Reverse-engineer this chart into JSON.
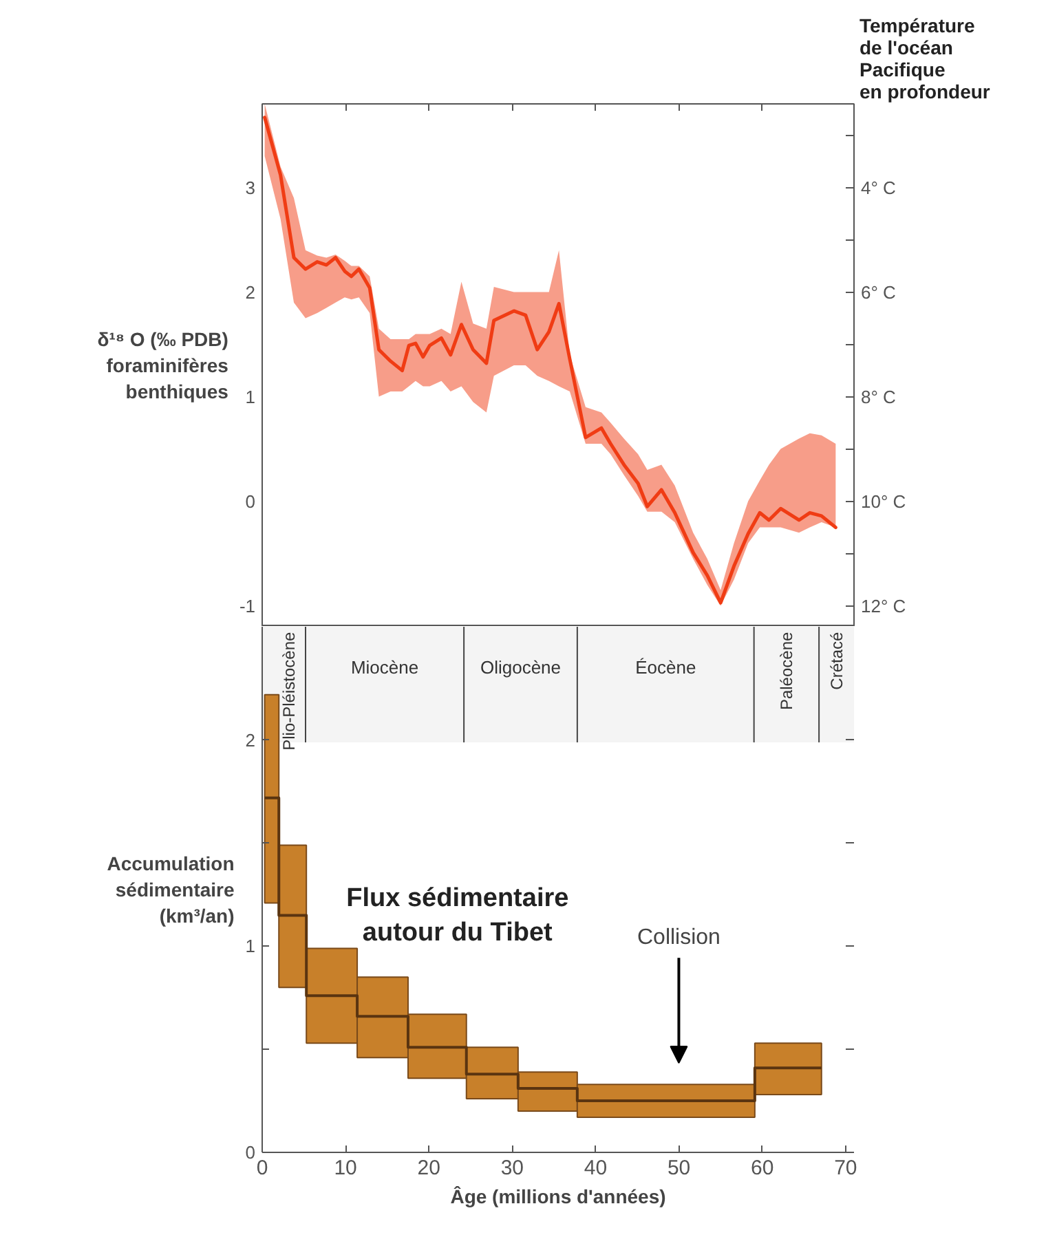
{
  "chart_data": [
    {
      "type": "line",
      "ylabel": "δ¹⁸ O (‰ PDB)\nforaminifères\nbenthiques",
      "y2label": "Température\nde l'océan\nPacifique\nen profondeur",
      "xlim": [
        0,
        71
      ],
      "xticks": [
        10,
        20,
        30,
        40,
        50,
        60
      ],
      "tick_labels": "y",
      "ylim": [
        -1.2,
        3.8
      ],
      "yticks": [
        -1,
        {
          "value": -0.5,
          "label": null
        },
        0,
        {
          "value": 0.5,
          "label": null
        },
        1,
        {
          "value": 1.5,
          "label": null
        },
        2,
        {
          "value": 2.5,
          "label": null
        },
        3,
        {
          "value": 3.5,
          "label": null
        }
      ],
      "y2lim": [
        12.4,
        2.4
      ],
      "y2ticks": [
        {
          "value": 3,
          "label": null
        },
        {
          "value": 4,
          "label": "4° C"
        },
        {
          "value": 5,
          "label": null
        },
        {
          "value": 6,
          "label": "6° C"
        },
        {
          "value": 7,
          "label": null
        },
        {
          "value": 8,
          "label": "8° C"
        },
        {
          "value": 9,
          "label": null
        },
        {
          "value": 10,
          "label": "10° C"
        },
        {
          "value": 11,
          "label": null
        },
        {
          "value": 12,
          "label": "12° C"
        }
      ],
      "series": [
        {
          "color": "#f03c14",
          "x": [
            0.3,
            2.2,
            3.8,
            5.2,
            6.6,
            7.7,
            8.8,
            9.9,
            10.7,
            11.6,
            12.9,
            14.0,
            15.4,
            16.8,
            17.6,
            18.4,
            19.3,
            20.1,
            21.5,
            22.6,
            23.9,
            25.3,
            26.9,
            27.8,
            30.2,
            31.6,
            33.0,
            34.4,
            35.6,
            36.9,
            38.8,
            40.7,
            41.8,
            43.4,
            45.1,
            46.2,
            47.9,
            49.5,
            51.7,
            53.4,
            55.0,
            56.6,
            58.3,
            59.7,
            60.8,
            62.2,
            64.4,
            65.7,
            67.1,
            68.8
          ],
          "values": [
            3.67,
            3.12,
            2.33,
            2.22,
            2.29,
            2.26,
            2.33,
            2.2,
            2.15,
            2.22,
            2.04,
            1.45,
            1.34,
            1.25,
            1.49,
            1.51,
            1.38,
            1.49,
            1.56,
            1.4,
            1.69,
            1.45,
            1.32,
            1.73,
            1.82,
            1.78,
            1.45,
            1.62,
            1.89,
            1.36,
            0.61,
            0.7,
            0.55,
            0.35,
            0.17,
            -0.05,
            0.11,
            -0.11,
            -0.49,
            -0.71,
            -0.97,
            -0.62,
            -0.31,
            -0.11,
            -0.18,
            -0.07,
            -0.18,
            -0.11,
            -0.14,
            -0.25
          ],
          "upper": [
            3.8,
            3.2,
            2.9,
            2.4,
            2.35,
            2.33,
            2.36,
            2.3,
            2.25,
            2.25,
            2.15,
            1.65,
            1.55,
            1.55,
            1.55,
            1.6,
            1.6,
            1.6,
            1.65,
            1.6,
            2.1,
            1.7,
            1.65,
            2.05,
            2.0,
            2.0,
            2.0,
            2.0,
            2.4,
            1.4,
            0.9,
            0.85,
            0.75,
            0.6,
            0.45,
            0.3,
            0.35,
            0.15,
            -0.3,
            -0.55,
            -0.85,
            -0.4,
            0.0,
            0.2,
            0.35,
            0.5,
            0.6,
            0.65,
            0.63,
            0.55
          ],
          "lower": [
            3.3,
            2.7,
            1.9,
            1.75,
            1.8,
            1.85,
            1.9,
            1.95,
            1.93,
            1.95,
            1.8,
            1.0,
            1.05,
            1.05,
            1.1,
            1.15,
            1.1,
            1.1,
            1.15,
            1.05,
            1.1,
            0.95,
            0.85,
            1.2,
            1.3,
            1.3,
            1.2,
            1.15,
            1.1,
            1.05,
            0.55,
            0.55,
            0.45,
            0.25,
            0.05,
            -0.1,
            -0.1,
            -0.2,
            -0.55,
            -0.8,
            -1.0,
            -0.75,
            -0.4,
            -0.25,
            -0.25,
            -0.25,
            -0.3,
            -0.25,
            -0.2,
            -0.25
          ]
        }
      ]
    },
    {
      "type": "histogram",
      "xlabel": "Âge (millions d'années)",
      "ylabel": "Accumulation\nsédimentaire\n(km³/an)",
      "xlim": [
        0,
        71
      ],
      "xticks": [
        0,
        10,
        20,
        30,
        40,
        50,
        60,
        70
      ],
      "ylim": [
        0,
        2.55
      ],
      "yticks": [
        0,
        {
          "value": 0.5,
          "label": null
        },
        1,
        {
          "value": 1.5,
          "label": null
        },
        2
      ],
      "annotations": [
        "Flux sédimentaire\nautour du Tibet",
        "Collision"
      ],
      "ref_lines": [
        {
          "axis": "x",
          "value": 5.2,
          "color": "#444444"
        },
        {
          "axis": "x",
          "value": 24.2,
          "color": "#444444"
        },
        {
          "axis": "x",
          "value": 37.8,
          "color": "#444444"
        },
        {
          "axis": "x",
          "value": 59,
          "color": "#444444"
        },
        {
          "axis": "x",
          "value": 66.8,
          "color": "#444444"
        }
      ],
      "bands": [
        {
          "axis": "x",
          "from": 0,
          "to": 5.2,
          "label": "Plio-Pléistocène",
          "color": "#f4f4f4"
        },
        {
          "axis": "x",
          "from": 5.2,
          "to": 24.2,
          "label": "Miocène",
          "color": "#f4f4f4"
        },
        {
          "axis": "x",
          "from": 24.2,
          "to": 37.8,
          "label": "Oligocène",
          "color": "#f4f4f4"
        },
        {
          "axis": "x",
          "from": 37.8,
          "to": 59,
          "label": "Éocène",
          "color": "#f4f4f4"
        },
        {
          "axis": "x",
          "from": 59,
          "to": 66.8,
          "label": "Paléocène",
          "color": "#f4f4f4"
        },
        {
          "axis": "x",
          "from": 66.8,
          "to": 71,
          "label": "Crétacé",
          "color": "#f4f4f4"
        }
      ],
      "series": [
        {
          "type": "histogram",
          "color": "#c8802a",
          "bins": [
            0.3,
            2,
            5.3,
            11.4,
            17.5,
            24.5,
            30.7,
            37.8,
            59.1,
            67.1
          ],
          "base": [
            1.21,
            0.8,
            0.53,
            0.46,
            0.36,
            0.26,
            0.2,
            0.17,
            0.28
          ],
          "values": [
            1.01,
            0.69,
            0.46,
            0.39,
            0.31,
            0.25,
            0.19,
            0.16,
            0.25
          ]
        },
        {
          "type": "step",
          "color": "#5a3410",
          "x": [
            0.3,
            2,
            5.3,
            11.4,
            17.5,
            24.5,
            30.7,
            37.8,
            59.1,
            67.1
          ],
          "values": [
            1.72,
            1.15,
            0.76,
            0.66,
            0.51,
            0.38,
            0.31,
            0.25,
            0.41,
            0.41
          ]
        }
      ]
    }
  ]
}
